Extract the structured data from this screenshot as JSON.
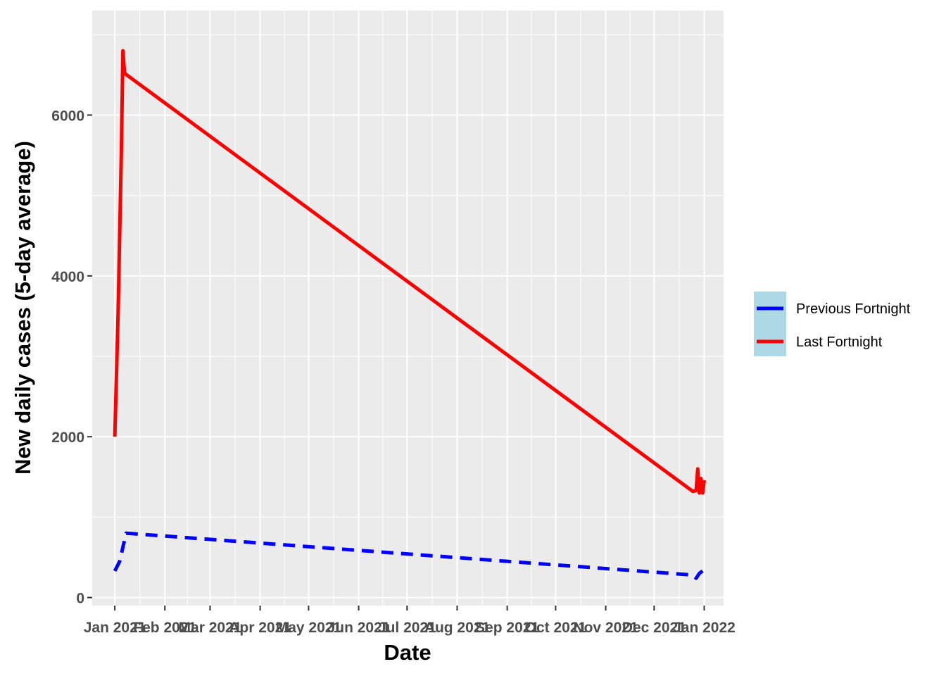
{
  "chart_data": {
    "type": "line",
    "xlabel": "Date",
    "ylabel": "New daily cases (5-day average)",
    "xlim": [
      "2020-12-18",
      "2022-01-13"
    ],
    "ylim": [
      -100,
      7300
    ],
    "x_ticks": [
      {
        "date": "2021-01-01",
        "label": "Jan 2021"
      },
      {
        "date": "2021-02-01",
        "label": "Feb 2021"
      },
      {
        "date": "2021-03-01",
        "label": "Mar 2021"
      },
      {
        "date": "2021-04-01",
        "label": "Apr 2021"
      },
      {
        "date": "2021-05-01",
        "label": "May 2021"
      },
      {
        "date": "2021-06-01",
        "label": "Jun 2021"
      },
      {
        "date": "2021-07-01",
        "label": "Jul 2021"
      },
      {
        "date": "2021-08-01",
        "label": "Aug 2021"
      },
      {
        "date": "2021-09-01",
        "label": "Sep 2021"
      },
      {
        "date": "2021-10-01",
        "label": "Oct 2021"
      },
      {
        "date": "2021-11-01",
        "label": "Nov 2021"
      },
      {
        "date": "2021-12-01",
        "label": "Dec 2021"
      },
      {
        "date": "2022-01-01",
        "label": "Jan 2022"
      }
    ],
    "y_ticks": [
      0,
      2000,
      4000,
      6000
    ],
    "grid": true,
    "legend_position": "right",
    "series": [
      {
        "name": "Previous Fortnight",
        "color": "#0000ff",
        "line_style": "dashed",
        "points": [
          {
            "x": "2021-01-01",
            "y": 330
          },
          {
            "x": "2021-01-04",
            "y": 450
          },
          {
            "x": "2021-01-08",
            "y": 800
          },
          {
            "x": "2021-12-25",
            "y": 280
          },
          {
            "x": "2021-12-27",
            "y": 240
          },
          {
            "x": "2021-12-29",
            "y": 300
          },
          {
            "x": "2021-12-31",
            "y": 330
          }
        ]
      },
      {
        "name": "Last Fortnight",
        "color": "#ff0000",
        "line_style": "solid",
        "points": [
          {
            "x": "2021-01-01",
            "y": 2000
          },
          {
            "x": "2021-01-03",
            "y": 3500
          },
          {
            "x": "2021-01-05",
            "y": 5500
          },
          {
            "x": "2021-01-06",
            "y": 6800
          },
          {
            "x": "2021-01-07",
            "y": 6520
          },
          {
            "x": "2021-12-25",
            "y": 1320
          },
          {
            "x": "2021-12-27",
            "y": 1330
          },
          {
            "x": "2021-12-28",
            "y": 1600
          },
          {
            "x": "2021-12-29",
            "y": 1300
          },
          {
            "x": "2021-12-30",
            "y": 1480
          },
          {
            "x": "2021-12-31",
            "y": 1300
          },
          {
            "x": "2022-01-01",
            "y": 1460
          }
        ]
      }
    ]
  }
}
